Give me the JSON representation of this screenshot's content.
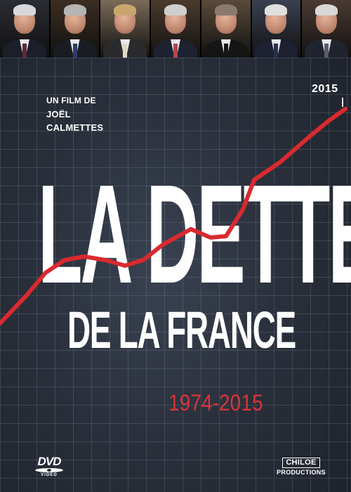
{
  "cover": {
    "credit_line1": "UN FILM DE",
    "credit_line2": "JOËL",
    "credit_line3": "CALMETTES",
    "title_line1": "LA DETTE",
    "title_line2": "DE LA FRANCE",
    "period": "1974-2015",
    "year_marker": "2015"
  },
  "logos": {
    "format_label": "DVD",
    "format_sub": "VIDEO",
    "producer_name": "CHILOE",
    "producer_sub": "PRODUCTIONS"
  },
  "portraits": [
    {
      "bg": "#2a2c33",
      "hair": "#d8d8dc",
      "suit": "#1c1f2a",
      "tie": "#5a2a34"
    },
    {
      "bg": "#3b2d22",
      "hair": "#b4b4b4",
      "suit": "#1a1c24",
      "tie": "#2a3c6a"
    },
    {
      "bg": "#7a6a58",
      "hair": "#c9a66e",
      "suit": "#2b2b2e",
      "tie": "#e0d6c8"
    },
    {
      "bg": "#4a3a2c",
      "hair": "#cfcfcf",
      "suit": "#1e2230",
      "tie": "#b8434a"
    },
    {
      "bg": "#5a4a3a",
      "hair": "#8a7a6e",
      "suit": "#151515",
      "tie": "#151515"
    },
    {
      "bg": "#3a4050",
      "hair": "#e0e0e0",
      "suit": "#1c2030",
      "tie": "#26304a"
    },
    {
      "bg": "#4a3a32",
      "hair": "#d8d8d8",
      "suit": "#20242e",
      "tie": "#5a5a6a"
    }
  ],
  "colors": {
    "debt_line": "#d92a2f",
    "period_text": "#d6343a",
    "background": "#2a303b"
  }
}
